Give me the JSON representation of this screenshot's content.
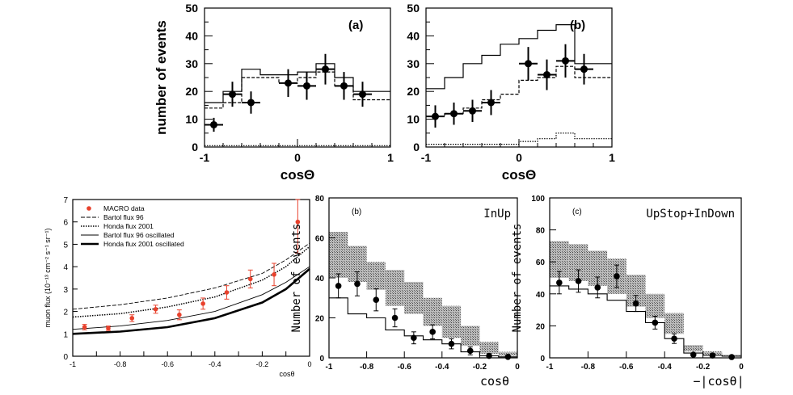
{
  "chart_data": [
    {
      "id": "a",
      "type": "line",
      "panel_label": "(a)",
      "xlabel": "cosΘ",
      "ylabel": "number of events",
      "xlim": [
        -1,
        1
      ],
      "ylim": [
        0,
        50
      ],
      "xticks": [
        "-1",
        "0",
        "1"
      ],
      "yticks": [
        "0",
        "10",
        "20",
        "30",
        "40",
        "50"
      ],
      "bin_edges": [
        -1,
        -0.8,
        -0.6,
        -0.4,
        -0.2,
        0,
        0.2,
        0.4,
        0.6,
        0.8,
        1
      ],
      "series": [
        {
          "name": "data",
          "style": "points",
          "x": [
            -0.9,
            -0.7,
            -0.5,
            -0.3,
            -0.1,
            0.1,
            0.3,
            0.5,
            0.7,
            0.9
          ],
          "values": [
            8,
            19,
            16,
            null,
            23,
            22,
            28,
            22,
            19,
            null
          ],
          "err": [
            2.5,
            4.5,
            4,
            null,
            5,
            5,
            5.5,
            5,
            4.5,
            null
          ]
        },
        {
          "name": "solid",
          "style": "solid",
          "values": [
            16,
            20,
            28,
            26,
            26,
            27,
            30,
            25,
            20,
            20
          ]
        },
        {
          "name": "dashed",
          "style": "dashed",
          "values": [
            14,
            16,
            25,
            25,
            23,
            25,
            27,
            22,
            17,
            17
          ]
        },
        {
          "name": "dotted",
          "style": "dotted",
          "values": [
            0.5,
            0.5,
            0.5,
            0.5,
            0.5,
            0.5,
            0.5,
            0.5,
            0.5,
            0.5
          ]
        }
      ]
    },
    {
      "id": "b",
      "type": "line",
      "panel_label": "(b)",
      "xlabel": "cosΘ",
      "ylabel": "",
      "xlim": [
        -1,
        1
      ],
      "ylim": [
        0,
        50
      ],
      "xticks": [
        "-1",
        "0",
        "1"
      ],
      "yticks": [
        "0",
        "10",
        "20",
        "30",
        "40",
        "50"
      ],
      "bin_edges": [
        -1,
        -0.8,
        -0.6,
        -0.4,
        -0.2,
        0,
        0.2,
        0.4,
        0.6,
        0.8,
        1
      ],
      "series": [
        {
          "name": "data",
          "style": "points",
          "x": [
            -0.9,
            -0.7,
            -0.5,
            -0.3,
            -0.1,
            0.1,
            0.3,
            0.5,
            0.7,
            0.9
          ],
          "values": [
            11,
            12,
            13,
            16,
            null,
            30,
            26,
            31,
            28,
            null
          ],
          "err": [
            4,
            4,
            4,
            4.5,
            null,
            6,
            5.5,
            6,
            5.5,
            null
          ]
        },
        {
          "name": "solid",
          "style": "solid",
          "values": [
            21,
            25,
            30,
            33,
            37,
            39,
            42,
            44,
            30,
            30
          ]
        },
        {
          "name": "dashed",
          "style": "dashed",
          "values": [
            11,
            12,
            14,
            17,
            19,
            24,
            25,
            29,
            25,
            25
          ]
        },
        {
          "name": "dotted",
          "style": "dotted",
          "values": [
            1,
            1,
            1,
            1,
            1,
            2,
            3,
            5,
            3,
            3
          ]
        }
      ]
    },
    {
      "id": "c",
      "type": "line",
      "xlabel": "cosθ",
      "ylabel": "muon flux (10⁻¹³ cm⁻² s⁻¹ sr⁻¹)",
      "xlim": [
        -1,
        0
      ],
      "ylim": [
        0,
        7
      ],
      "xticks": [
        "-1",
        "-0.9",
        "-0.8",
        "-0.7",
        "-0.6",
        "-0.5",
        "-0.4",
        "-0.3",
        "-0.2",
        "-0.1",
        "0"
      ],
      "yticks": [
        "0",
        "1",
        "2",
        "3",
        "4",
        "5",
        "6",
        "7"
      ],
      "legend": [
        "MACRO data",
        "Bartol flux 96",
        "Honda flux 2001",
        "Bartol flux 96 oscillated",
        "Honda flux 2001 oscillated"
      ],
      "data_points": {
        "x": [
          -0.95,
          -0.85,
          -0.75,
          -0.65,
          -0.55,
          -0.45,
          -0.35,
          -0.25,
          -0.15,
          -0.05
        ],
        "y": [
          1.3,
          1.25,
          1.7,
          2.1,
          1.85,
          2.35,
          2.85,
          3.45,
          3.65,
          6.0
        ],
        "err": [
          0.12,
          0.1,
          0.15,
          0.18,
          0.22,
          0.25,
          0.3,
          0.4,
          0.5,
          1.4
        ]
      },
      "curves": [
        {
          "name": "Bartol flux 96",
          "style": "dashed-thin",
          "x": [
            -1,
            -0.8,
            -0.6,
            -0.4,
            -0.2,
            -0.1,
            0
          ],
          "y": [
            2.1,
            2.3,
            2.6,
            3.05,
            3.7,
            4.3,
            5.05
          ]
        },
        {
          "name": "Honda flux 2001",
          "style": "dotted",
          "x": [
            -1,
            -0.8,
            -0.6,
            -0.4,
            -0.2,
            -0.1,
            0
          ],
          "y": [
            1.75,
            1.9,
            2.2,
            2.65,
            3.4,
            4.0,
            4.9
          ]
        },
        {
          "name": "Bartol flux 96 oscillated",
          "style": "thin",
          "x": [
            -1,
            -0.8,
            -0.6,
            -0.4,
            -0.2,
            -0.1,
            0
          ],
          "y": [
            1.2,
            1.35,
            1.6,
            2.0,
            2.75,
            3.3,
            4.0
          ]
        },
        {
          "name": "Honda flux 2001 oscillated",
          "style": "thick",
          "x": [
            -1,
            -0.8,
            -0.6,
            -0.4,
            -0.2,
            -0.1,
            0
          ],
          "y": [
            1.0,
            1.1,
            1.3,
            1.7,
            2.4,
            3.0,
            3.9
          ]
        }
      ]
    },
    {
      "id": "d",
      "type": "line",
      "panel_label": "(b)",
      "title": "InUp",
      "xlabel": "cosθ",
      "ylabel": "Number of events",
      "xlim": [
        -1,
        0
      ],
      "ylim": [
        0,
        80
      ],
      "xticks": [
        "-1",
        "-0.8",
        "-0.6",
        "-0.4",
        "-0.2",
        "0"
      ],
      "yticks": [
        "0",
        "20",
        "40",
        "60",
        "80"
      ],
      "bin_edges": [
        -1,
        -0.9,
        -0.8,
        -0.7,
        -0.6,
        -0.5,
        -0.4,
        -0.3,
        -0.2,
        -0.1,
        0
      ],
      "band": {
        "low": [
          40,
          38,
          34,
          26,
          22,
          16,
          10,
          6,
          2,
          1
        ],
        "high": [
          63,
          56,
          48,
          44,
          38,
          30,
          26,
          16,
          8,
          3
        ]
      },
      "solid": [
        30,
        22,
        20,
        14,
        11,
        9,
        7,
        3,
        1,
        0.5
      ],
      "points": {
        "x": [
          -0.95,
          -0.85,
          -0.75,
          -0.65,
          -0.55,
          -0.45,
          -0.35,
          -0.25,
          -0.15,
          -0.05
        ],
        "y": [
          36,
          37,
          29,
          20,
          10,
          13,
          7,
          3.5,
          1,
          0.5
        ],
        "err": [
          6,
          6,
          5.5,
          4.5,
          3,
          3.5,
          2.5,
          2,
          1,
          0.5
        ]
      }
    },
    {
      "id": "e",
      "type": "line",
      "panel_label": "(c)",
      "title": "UpStop+InDown",
      "xlabel": "−|cosθ|",
      "ylabel": "Number of events",
      "xlim": [
        -1,
        0
      ],
      "ylim": [
        0,
        100
      ],
      "xticks": [
        "-1",
        "-0.8",
        "-0.6",
        "-0.4",
        "-0.2",
        "0"
      ],
      "yticks": [
        "0",
        "20",
        "40",
        "60",
        "80",
        "100"
      ],
      "bin_edges": [
        -1,
        -0.9,
        -0.8,
        -0.7,
        -0.6,
        -0.5,
        -0.4,
        -0.3,
        -0.2,
        -0.1,
        0
      ],
      "band": {
        "low": [
          50,
          48,
          45,
          40,
          32,
          25,
          15,
          4,
          2,
          1
        ],
        "high": [
          73,
          71,
          67,
          62,
          52,
          40,
          28,
          8,
          4,
          2
        ]
      },
      "solid": [
        45,
        43,
        40,
        36,
        29,
        22,
        12,
        3,
        1.5,
        1
      ],
      "points": {
        "x": [
          -0.95,
          -0.85,
          -0.75,
          -0.65,
          -0.55,
          -0.45,
          -0.35,
          -0.25,
          -0.15,
          -0.05
        ],
        "y": [
          47,
          48,
          44,
          51,
          34,
          22,
          12,
          2,
          1.5,
          0.5
        ],
        "err": [
          7,
          7,
          6.5,
          7,
          5,
          4,
          3,
          1,
          1,
          0.5
        ]
      }
    }
  ]
}
